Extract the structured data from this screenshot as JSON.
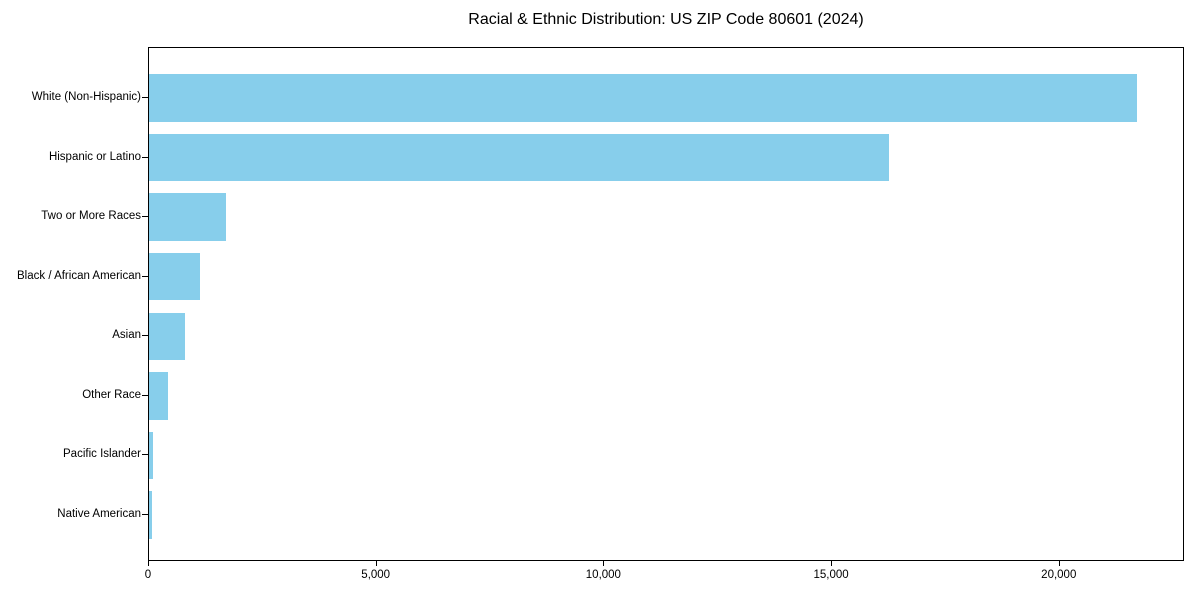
{
  "chart_data": {
    "type": "bar",
    "orientation": "horizontal",
    "title": "Racial & Ethnic Distribution: US ZIP Code 80601 (2024)",
    "xlabel": "",
    "ylabel": "",
    "categories": [
      "White (Non-Hispanic)",
      "Hispanic or Latino",
      "Two or More Races",
      "Black / African American",
      "Asian",
      "Other Race",
      "Pacific Islander",
      "Native American"
    ],
    "values": [
      21700,
      16250,
      1680,
      1130,
      800,
      420,
      90,
      55
    ],
    "xlim": [
      0,
      22750
    ],
    "x_ticks": {
      "values": [
        0,
        5000,
        10000,
        15000,
        20000
      ],
      "labels": [
        "0",
        "5,000",
        "10,000",
        "15,000",
        "20,000"
      ]
    },
    "bar_color": "#87CEEB",
    "grid": false,
    "legend": null,
    "background_color": "#ffffff",
    "axis_color": "#000000"
  }
}
